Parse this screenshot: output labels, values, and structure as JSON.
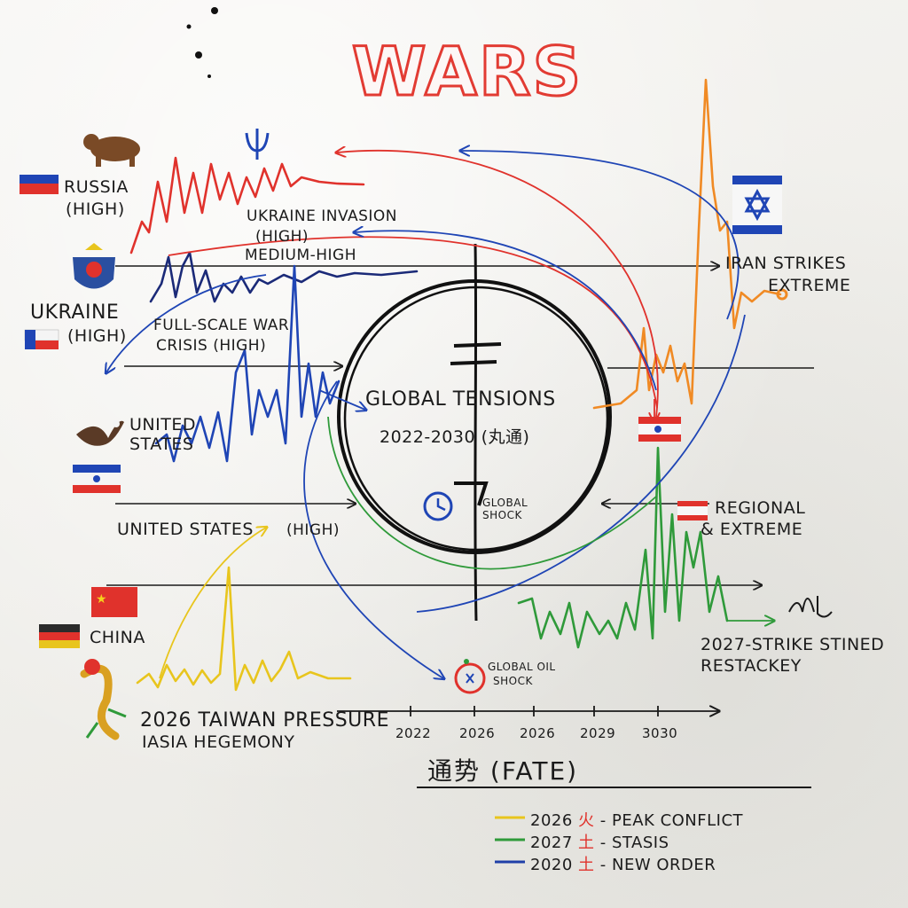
{
  "title": "WARS",
  "center": {
    "title": "GLOBAL TENSIONS",
    "subtitle": "2022-2030 (丸通)",
    "glyph_top": "土",
    "shock_label": "GLOBAL SHOCK"
  },
  "left_labels": {
    "russia": "RUSSIA",
    "russia_level": "(HIGH)",
    "ukraine": "UKRAINE",
    "ukraine_level": "(HIGH)",
    "united_states": "UNITED STATES",
    "united_states_row": "UNITED STATES",
    "united_states_level": "(HIGH)",
    "china": "CHINA"
  },
  "annotations": {
    "ukraine_invasion": "UKRAINE INVASION",
    "ukraine_invasion_level": "(HIGH)",
    "medium_high": "MEDIUM-HIGH",
    "full_scale_war": "FULL-SCALE WAR",
    "crisis": "CRISIS (HIGH)",
    "iran_strikes": "IRAN STRIKES",
    "iran_level": "EXTREME",
    "regional": "REGIONAL",
    "regional_level": "& EXTREME",
    "strike_line1": "2027-STRIKE STINED",
    "strike_line2": "RESTACKEY",
    "oil_shock_line1": "GLOBAL OIL",
    "oil_shock_line2": "SHOCK",
    "taiwan_line1": "2026 TAIWAN PRESSURE",
    "taiwan_line2": "IASIA HEGEMONY"
  },
  "timeline": {
    "ticks": [
      "2022",
      "2026",
      "2026",
      "2029",
      "3030"
    ]
  },
  "fate": {
    "title": "通势 (FATE)"
  },
  "legend": [
    {
      "color": "#e8c51d",
      "year": "2026",
      "glyph": "火",
      "label": "- PEAK CONFLICT"
    },
    {
      "color": "#2f9a3a",
      "year": "2027",
      "glyph": "土",
      "label": "- STASIS"
    },
    {
      "color": "#1f3fa8",
      "year": "2020",
      "glyph": "土",
      "label": "- NEW ORDER"
    }
  ],
  "colors": {
    "russia": "#e0322c",
    "ukraine": "#1b2a78",
    "united_states": "#1f45b5",
    "iran": "#f08a24",
    "regional": "#2f9a3a",
    "china": "#e8c51d",
    "title_stroke": "#e23b33"
  },
  "icons": [
    "bear-icon",
    "trident-icon",
    "ukraine-crest-icon",
    "eagle-icon",
    "dragon-icon",
    "star-of-david-icon",
    "clock-icon"
  ]
}
